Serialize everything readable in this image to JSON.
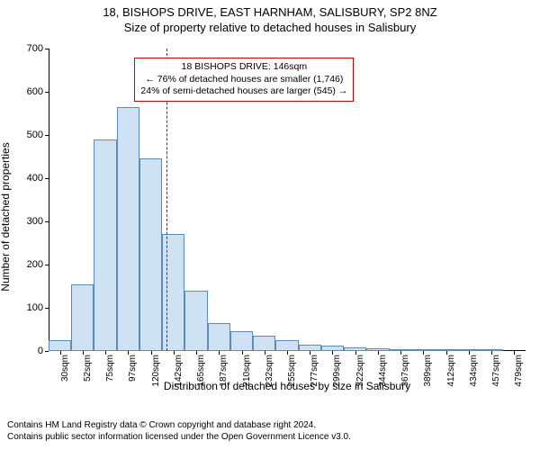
{
  "header": {
    "line1": "18, BISHOPS DRIVE, EAST HARNHAM, SALISBURY, SP2 8NZ",
    "line2": "Size of property relative to detached houses in Salisbury"
  },
  "chart": {
    "type": "histogram",
    "ylabel": "Number of detached properties",
    "xlabel": "Distribution of detached houses by size in Salisbury",
    "ylim": [
      0,
      700
    ],
    "yticks": [
      0,
      100,
      200,
      300,
      400,
      500,
      600,
      700
    ],
    "categories": [
      "30sqm",
      "52sqm",
      "75sqm",
      "97sqm",
      "120sqm",
      "142sqm",
      "165sqm",
      "187sqm",
      "210sqm",
      "232sqm",
      "255sqm",
      "277sqm",
      "299sqm",
      "322sqm",
      "344sqm",
      "367sqm",
      "389sqm",
      "412sqm",
      "434sqm",
      "457sqm",
      "479sqm"
    ],
    "values": [
      25,
      155,
      490,
      565,
      445,
      270,
      140,
      65,
      45,
      35,
      25,
      15,
      12,
      8,
      6,
      4,
      2,
      1,
      1,
      1,
      0
    ],
    "bar_fill": "#cfe2f3",
    "bar_stroke": "#5b8bb6",
    "bar_width_ratio": 1.0,
    "background_color": "#ffffff",
    "axis_color": "#000000",
    "tick_fontsize": 11,
    "marker": {
      "bin_index": 5,
      "position_in_bin": 0.18,
      "color": "#cc0000"
    },
    "info_box": {
      "border_color": "#cc0000",
      "lines": [
        "18 BISHOPS DRIVE: 146sqm",
        "← 76% of detached houses are smaller (1,746)",
        "24% of semi-detached houses are larger (545) →"
      ],
      "left_pct": 18,
      "top_pct": 3,
      "fontsize": 10.5
    }
  },
  "footer": {
    "line1": "Contains HM Land Registry data © Crown copyright and database right 2024.",
    "line2": "Contains public sector information licensed under the Open Government Licence v3.0."
  }
}
